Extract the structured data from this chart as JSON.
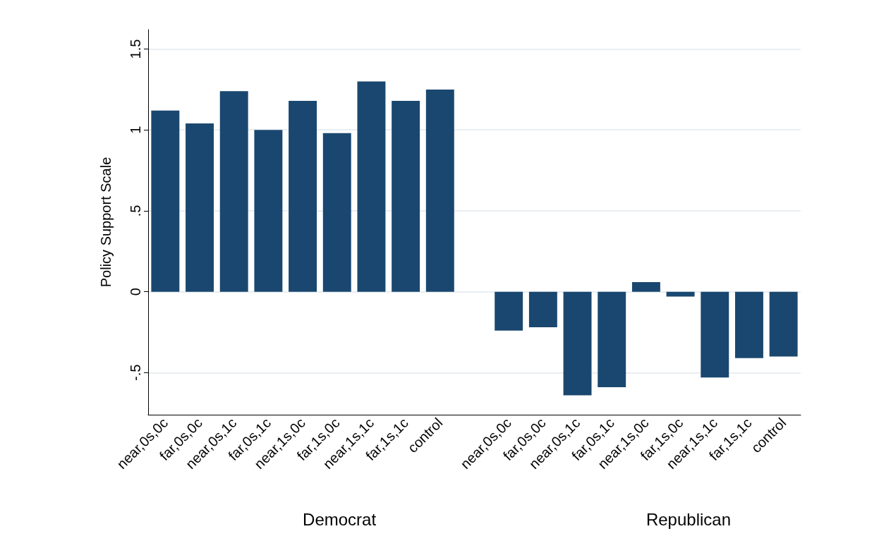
{
  "chart_data": {
    "type": "bar",
    "ylabel": "Policy Support Scale",
    "categories": [
      "near,0s,0c",
      "far,0s,0c",
      "near,0s,1c",
      "far,0s,1c",
      "near,1s,0c",
      "far,1s,0c",
      "near,1s,1c",
      "far,1s,1c",
      "control",
      null,
      "near,0s,0c",
      "far,0s,0c",
      "near,0s,1c",
      "far,0s,1c",
      "near,1s,0c",
      "far,1s,0c",
      "near,1s,1c",
      "far,1s,1c",
      "control"
    ],
    "values": [
      1.12,
      1.04,
      1.24,
      1.0,
      1.18,
      0.98,
      1.3,
      1.18,
      1.25,
      null,
      -0.24,
      -0.22,
      -0.64,
      -0.59,
      0.06,
      -0.03,
      -0.53,
      -0.41,
      -0.4
    ],
    "color": "#1a476f",
    "ylim": [
      -0.76,
      1.62
    ],
    "yticks": [
      {
        "value": -0.5,
        "label": "-.5"
      },
      {
        "value": 0,
        "label": "0"
      },
      {
        "value": 0.5,
        "label": ".5"
      },
      {
        "value": 1,
        "label": "1"
      },
      {
        "value": 1.5,
        "label": "1.5"
      }
    ],
    "grid": "y",
    "annotations": [
      "Democrat",
      "Republican"
    ]
  }
}
